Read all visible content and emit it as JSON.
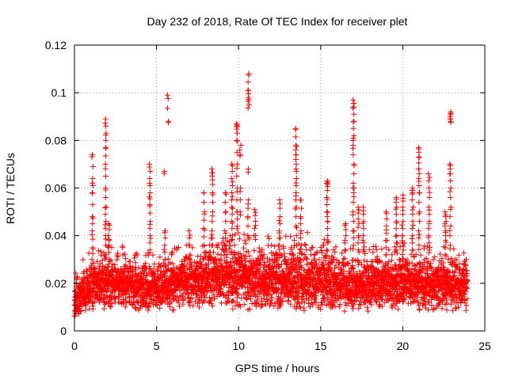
{
  "chart_data": {
    "type": "scatter",
    "title": "Day 232 of 2018, Rate Of TEC Index for receiver plet",
    "xlabel": "GPS time / hours",
    "ylabel": "ROTI / TECUs",
    "xlim": [
      0,
      25
    ],
    "ylim": [
      0,
      0.12
    ],
    "x_ticks": [
      0,
      5,
      10,
      15,
      20,
      25
    ],
    "x_tick_labels": [
      "0",
      "5",
      "10",
      "15",
      "20",
      "25"
    ],
    "y_ticks": [
      0,
      0.02,
      0.04,
      0.06,
      0.08,
      0.1,
      0.12
    ],
    "y_tick_labels": [
      "0",
      "0.02",
      "0.04",
      "0.06",
      "0.08",
      "0.1",
      "0.12"
    ],
    "grid": true,
    "marker": "+",
    "series_color": "#ff0000",
    "baseline": {
      "x": [
        0,
        1,
        2,
        3,
        4,
        5,
        6,
        7,
        8,
        9,
        10,
        11,
        12,
        13,
        14,
        15,
        16,
        17,
        18,
        19,
        20,
        21,
        22,
        23,
        24
      ],
      "low": [
        0.005,
        0.008,
        0.009,
        0.009,
        0.008,
        0.008,
        0.008,
        0.009,
        0.009,
        0.009,
        0.008,
        0.008,
        0.008,
        0.008,
        0.008,
        0.006,
        0.008,
        0.008,
        0.008,
        0.008,
        0.008,
        0.008,
        0.008,
        0.008,
        0.008
      ],
      "high": [
        0.022,
        0.028,
        0.03,
        0.03,
        0.028,
        0.028,
        0.03,
        0.032,
        0.034,
        0.036,
        0.036,
        0.034,
        0.034,
        0.034,
        0.036,
        0.034,
        0.03,
        0.03,
        0.03,
        0.03,
        0.032,
        0.032,
        0.03,
        0.03,
        0.03
      ]
    },
    "spikes": [
      {
        "x": 1.1,
        "y": [
          0.03,
          0.035,
          0.042,
          0.048,
          0.058,
          0.064,
          0.074
        ]
      },
      {
        "x": 1.9,
        "y": [
          0.032,
          0.04,
          0.046,
          0.052,
          0.06,
          0.07,
          0.077,
          0.083,
          0.089
        ]
      },
      {
        "x": 2.1,
        "y": [
          0.03,
          0.036,
          0.04,
          0.045
        ]
      },
      {
        "x": 4.6,
        "y": [
          0.034,
          0.04,
          0.046,
          0.053,
          0.058,
          0.064,
          0.07
        ]
      },
      {
        "x": 5.5,
        "y": [
          0.03,
          0.036,
          0.042,
          0.067
        ]
      },
      {
        "x": 5.7,
        "y": [
          0.088,
          0.099
        ]
      },
      {
        "x": 7.0,
        "y": [
          0.036,
          0.042
        ]
      },
      {
        "x": 7.9,
        "y": [
          0.036,
          0.043,
          0.05,
          0.058
        ]
      },
      {
        "x": 8.4,
        "y": [
          0.036,
          0.042,
          0.05,
          0.058,
          0.065,
          0.068
        ]
      },
      {
        "x": 9.2,
        "y": [
          0.036,
          0.042,
          0.05,
          0.058
        ]
      },
      {
        "x": 9.6,
        "y": [
          0.04,
          0.046,
          0.052,
          0.058,
          0.064,
          0.07
        ]
      },
      {
        "x": 9.9,
        "y": [
          0.044,
          0.05,
          0.06,
          0.07,
          0.08,
          0.086,
          0.087
        ]
      },
      {
        "x": 10.1,
        "y": [
          0.05,
          0.06,
          0.074,
          0.078
        ]
      },
      {
        "x": 10.6,
        "y": [
          0.04,
          0.048,
          0.055,
          0.068,
          0.095,
          0.098,
          0.101,
          0.108
        ]
      },
      {
        "x": 11.0,
        "y": [
          0.04,
          0.046,
          0.051
        ]
      },
      {
        "x": 12.5,
        "y": [
          0.036,
          0.042,
          0.048,
          0.055
        ]
      },
      {
        "x": 13.5,
        "y": [
          0.036,
          0.044,
          0.052,
          0.058,
          0.064,
          0.07,
          0.074,
          0.078,
          0.085
        ]
      },
      {
        "x": 13.8,
        "y": [
          0.036,
          0.042,
          0.048,
          0.055
        ]
      },
      {
        "x": 15.4,
        "y": [
          0.034,
          0.04,
          0.046,
          0.05,
          0.056,
          0.062,
          0.063
        ]
      },
      {
        "x": 16.5,
        "y": [
          0.034,
          0.04,
          0.045
        ]
      },
      {
        "x": 17.0,
        "y": [
          0.036,
          0.042,
          0.05,
          0.058,
          0.062,
          0.07,
          0.078,
          0.082,
          0.088,
          0.094,
          0.097
        ]
      },
      {
        "x": 17.3,
        "y": [
          0.034,
          0.04,
          0.047,
          0.052
        ]
      },
      {
        "x": 17.6,
        "y": [
          0.034,
          0.04,
          0.046,
          0.052
        ]
      },
      {
        "x": 19.0,
        "y": [
          0.032,
          0.038,
          0.044,
          0.05
        ]
      },
      {
        "x": 19.6,
        "y": [
          0.034,
          0.04,
          0.046,
          0.052,
          0.056
        ]
      },
      {
        "x": 20.0,
        "y": [
          0.034,
          0.04,
          0.046,
          0.052,
          0.057
        ]
      },
      {
        "x": 20.6,
        "y": [
          0.034,
          0.04,
          0.046,
          0.052,
          0.058,
          0.06
        ]
      },
      {
        "x": 21.0,
        "y": [
          0.036,
          0.042,
          0.05,
          0.058,
          0.064,
          0.068,
          0.073,
          0.077
        ]
      },
      {
        "x": 21.6,
        "y": [
          0.034,
          0.04,
          0.046,
          0.052,
          0.06,
          0.066
        ]
      },
      {
        "x": 22.6,
        "y": [
          0.032,
          0.038,
          0.042,
          0.046,
          0.05
        ]
      },
      {
        "x": 22.9,
        "y": [
          0.036,
          0.044,
          0.052,
          0.06,
          0.066,
          0.07,
          0.088,
          0.09,
          0.092
        ]
      }
    ]
  }
}
